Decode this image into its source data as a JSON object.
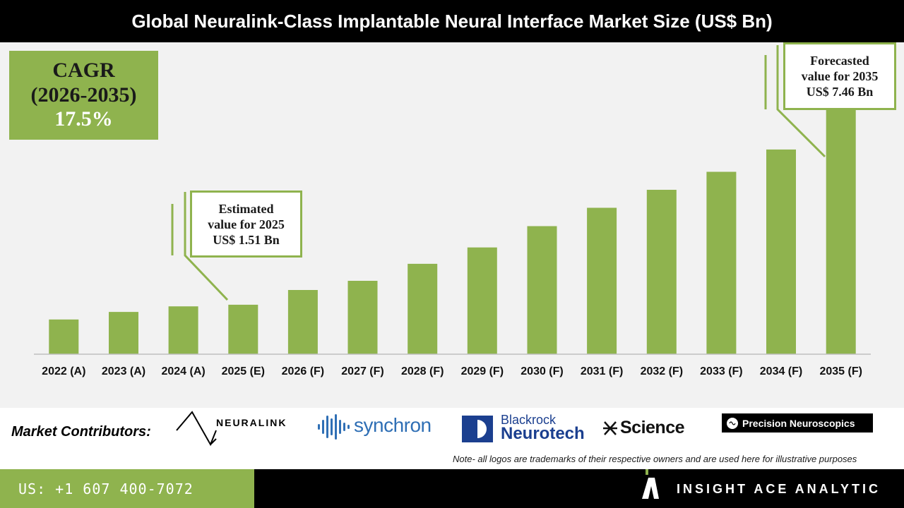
{
  "title": "Global Neuralink-Class Implantable Neural Interface Market Size (US$ Bn)",
  "cagr": {
    "line1": "CAGR",
    "line2": "(2026-2035)",
    "line3": "17.5%"
  },
  "callouts": {
    "estimated": {
      "line1": "Estimated",
      "line2": "value for 2025",
      "line3": "US$ 1.51 Bn"
    },
    "forecast": {
      "line1": "Forecasted",
      "line2": "value for 2035",
      "line3": "US$ 7.46 Bn"
    }
  },
  "chart_data": {
    "type": "bar",
    "title": "Global Neuralink-Class Implantable Neural Interface Market Size (US$ Bn)",
    "categories": [
      "2022 (A)",
      "2023 (A)",
      "2024 (A)",
      "2025 (E)",
      "2026 (F)",
      "2027 (F)",
      "2028 (F)",
      "2029 (F)",
      "2030 (F)",
      "2031 (F)",
      "2032 (F)",
      "2033 (F)",
      "2034 (F)",
      "2035 (F)"
    ],
    "values": [
      1.06,
      1.29,
      1.46,
      1.51,
      1.96,
      2.24,
      2.76,
      3.26,
      3.91,
      4.47,
      5.02,
      5.57,
      6.25,
      7.46
    ],
    "ylim": [
      0,
      7.8
    ],
    "grid": false,
    "bar_color": "#8fb34e"
  },
  "contributors": {
    "label": "Market Contributors:",
    "neuralink": "NEURALINK",
    "synchron": "synchron",
    "blackrock_1": "Blackrock",
    "blackrock_2": "Neurotech",
    "science": "Science",
    "precision": "Precision Neuroscopics",
    "note": "Note- all logos are trademarks of their respective owners and are used here for illustrative purposes"
  },
  "footer": {
    "phone": "US: +1 607 400-7072",
    "brand": "INSIGHT ACE ANALYTIC"
  },
  "colors": {
    "accent": "#8fb34e",
    "dark": "#000000",
    "panel": "#f2f2f2"
  }
}
